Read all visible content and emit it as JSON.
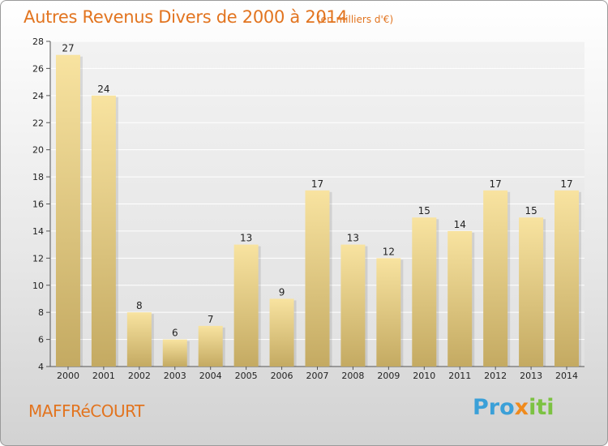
{
  "header": {
    "title": "Autres Revenus Divers de 2000 à 2014",
    "unit": "(en milliers d'€)"
  },
  "footer": {
    "commune": "MAFFRéCOURT",
    "logo": "Proxiti"
  },
  "colors": {
    "title": "#e2741f",
    "bar_top": "#f8e3a0",
    "bar_bottom": "#c4aa62"
  },
  "chart_data": {
    "type": "bar",
    "title": "Autres Revenus Divers de 2000 à 2014",
    "subtitle": "(en milliers d'€)",
    "xlabel": "",
    "ylabel": "",
    "categories": [
      "2000",
      "2001",
      "2002",
      "2003",
      "2004",
      "2005",
      "2006",
      "2007",
      "2008",
      "2009",
      "2010",
      "2011",
      "2012",
      "2013",
      "2014"
    ],
    "values": [
      27,
      24,
      8,
      6,
      7,
      13,
      9,
      17,
      13,
      12,
      15,
      14,
      17,
      15,
      17
    ],
    "ylim": [
      4,
      28
    ],
    "yticks": [
      4,
      6,
      8,
      10,
      12,
      14,
      16,
      18,
      20,
      22,
      24,
      26,
      28
    ],
    "grid": true,
    "legend": "none"
  }
}
